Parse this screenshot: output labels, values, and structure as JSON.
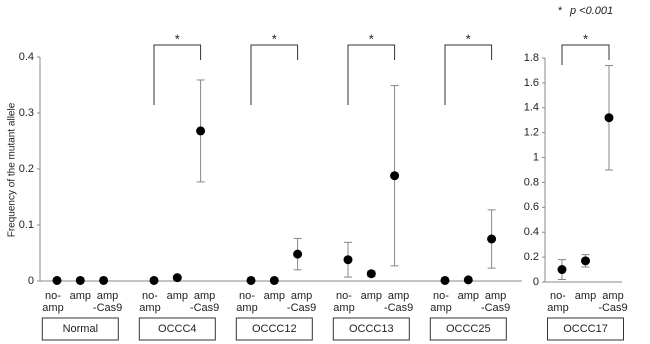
{
  "chart_data": [
    {
      "type": "dot-errorbar",
      "ylabel": "Frequency of the mutant allele",
      "categories": [
        [
          "no-",
          "amp"
        ],
        [
          "amp"
        ],
        [
          "amp",
          "-Cas9"
        ]
      ],
      "groups": [
        {
          "name": "Normal",
          "values": [
            0.001,
            0.001,
            0.001
          ],
          "errors": [
            0,
            0,
            0
          ],
          "significance": null
        },
        {
          "name": "OCCC4",
          "values": [
            0.001,
            0.006,
            0.268
          ],
          "errors": [
            0,
            0,
            0.091
          ],
          "significance": "*"
        },
        {
          "name": "OCCC12",
          "values": [
            0.001,
            0.001,
            0.048
          ],
          "errors": [
            0,
            0,
            0.028
          ],
          "significance": "*"
        },
        {
          "name": "OCCC13",
          "values": [
            0.038,
            0.013,
            0.188
          ],
          "errors": [
            0.031,
            0.005,
            0.161
          ],
          "significance": "*"
        },
        {
          "name": "OCCC25",
          "values": [
            0.001,
            0.002,
            0.075
          ],
          "errors": [
            0,
            0,
            0.052
          ],
          "significance": "*"
        }
      ],
      "color": "#000000",
      "ylim": [
        0,
        0.4
      ],
      "yticks": [
        0,
        0.1,
        0.2,
        0.3,
        0.4
      ]
    },
    {
      "type": "dot-errorbar",
      "note_symbol": "*",
      "note_text": "p <0.001",
      "categories": [
        [
          "no-",
          "amp"
        ],
        [
          "amp"
        ],
        [
          "amp",
          "-Cas9"
        ]
      ],
      "groups": [
        {
          "name": "OCCC17",
          "values": [
            0.1,
            0.17,
            1.32
          ],
          "errors": [
            0.08,
            0.05,
            0.42
          ],
          "significance": "*"
        }
      ],
      "color": "#000000",
      "ylim": [
        0,
        1.8
      ],
      "yticks": [
        0,
        0.2,
        0.4,
        0.6,
        0.8,
        1,
        1.2,
        1.4,
        1.6,
        1.8
      ]
    }
  ]
}
